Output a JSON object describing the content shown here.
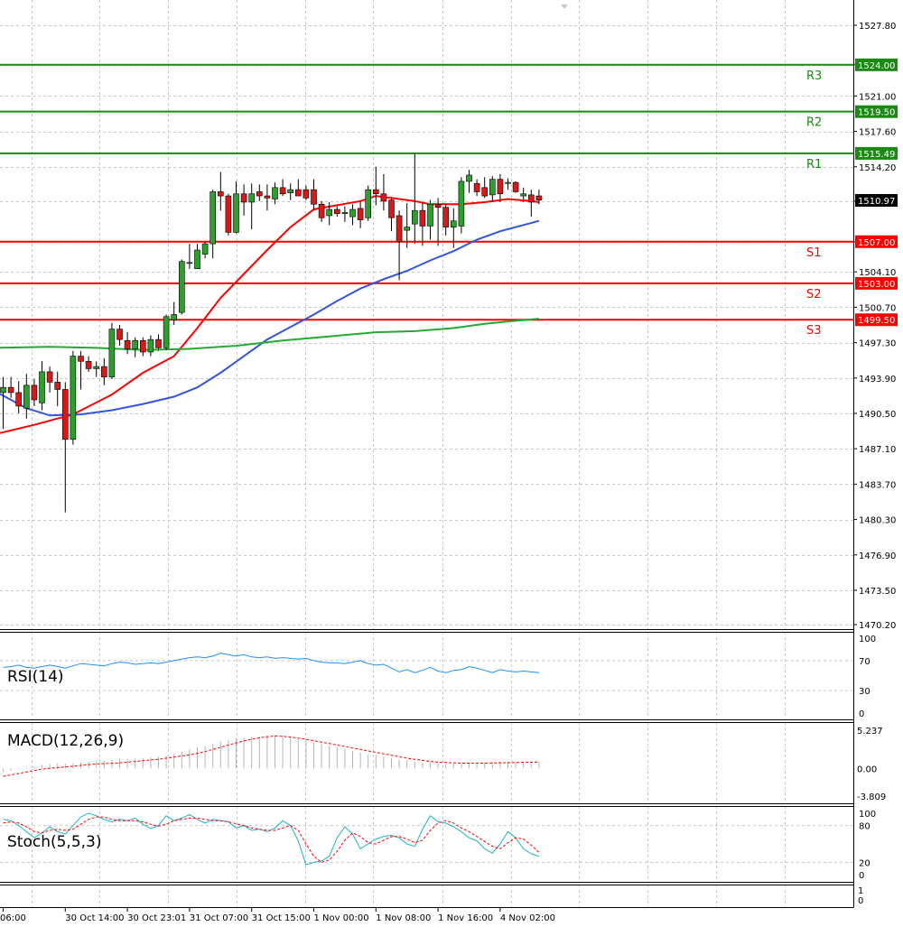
{
  "chart_data": {
    "type": "candlestick",
    "price_axis": {
      "ylim": [
        1470.2,
        1527.8
      ],
      "ticks": [
        "1527.80",
        "1524.00",
        "1521.00",
        "1517.60",
        "1514.20",
        "1510.90",
        "1507.00",
        "1504.10",
        "1500.70",
        "1497.30",
        "1493.90",
        "1490.50",
        "1487.10",
        "1483.70",
        "1480.30",
        "1476.90",
        "1473.50",
        "1470.20"
      ],
      "tick_values": [
        1527.8,
        1524.0,
        1521.0,
        1517.6,
        1514.2,
        1510.9,
        1507.0,
        1504.1,
        1500.7,
        1497.3,
        1493.9,
        1490.5,
        1487.1,
        1483.7,
        1480.3,
        1476.9,
        1473.5,
        1470.2
      ],
      "grid": true
    },
    "time_axis": {
      "labels": [
        "06:00",
        "30 Oct 14:00",
        "30 Oct 23:01",
        "31 Oct 07:00",
        "31 Oct 15:00",
        "1 Nov 00:00",
        "1 Nov 08:00",
        "1 Nov 16:00",
        "4 Nov 02:00"
      ],
      "label_bar_index": [
        0,
        8,
        16,
        24,
        32,
        40,
        48,
        56,
        64
      ]
    },
    "current_price": {
      "value": 1510.97,
      "label": "1510.97"
    },
    "levels": [
      {
        "name": "R3",
        "value": 1524.0,
        "label": "1524.00",
        "color": "#1a8a12"
      },
      {
        "name": "R2",
        "value": 1519.5,
        "label": "1519.50",
        "color": "#1a8a12"
      },
      {
        "name": "R1",
        "value": 1515.49,
        "label": "1515.49",
        "color": "#1a8a12"
      },
      {
        "name": "S1",
        "value": 1507.0,
        "label": "1507.00",
        "color": "#ff0000"
      },
      {
        "name": "S2",
        "value": 1503.0,
        "label": "1503.00",
        "color": "#ff0000"
      },
      {
        "name": "S3",
        "value": 1499.5,
        "label": "1499.50",
        "color": "#ff0000"
      }
    ],
    "candles": [
      {
        "o": 1492.5,
        "h": 1494.0,
        "l": 1489.0,
        "c": 1493.0
      },
      {
        "o": 1493.0,
        "h": 1494.0,
        "l": 1492.0,
        "c": 1492.5
      },
      {
        "o": 1492.5,
        "h": 1493.6,
        "l": 1490.5,
        "c": 1491.2
      },
      {
        "o": 1491.0,
        "h": 1494.3,
        "l": 1490.0,
        "c": 1493.2
      },
      {
        "o": 1493.2,
        "h": 1493.8,
        "l": 1491.2,
        "c": 1491.8
      },
      {
        "o": 1491.5,
        "h": 1495.5,
        "l": 1490.8,
        "c": 1494.5
      },
      {
        "o": 1494.5,
        "h": 1495.0,
        "l": 1492.5,
        "c": 1493.5
      },
      {
        "o": 1493.5,
        "h": 1494.5,
        "l": 1491.2,
        "c": 1492.8
      },
      {
        "o": 1492.8,
        "h": 1493.5,
        "l": 1481.0,
        "c": 1488.0
      },
      {
        "o": 1488.0,
        "h": 1496.5,
        "l": 1487.5,
        "c": 1496.0
      },
      {
        "o": 1496.0,
        "h": 1496.5,
        "l": 1492.8,
        "c": 1495.5
      },
      {
        "o": 1495.5,
        "h": 1496.0,
        "l": 1494.5,
        "c": 1494.8
      },
      {
        "o": 1494.8,
        "h": 1495.5,
        "l": 1494.0,
        "c": 1495.0
      },
      {
        "o": 1495.0,
        "h": 1495.8,
        "l": 1493.2,
        "c": 1494.0
      },
      {
        "o": 1494.0,
        "h": 1499.2,
        "l": 1493.8,
        "c": 1498.6
      },
      {
        "o": 1498.6,
        "h": 1499.0,
        "l": 1497.0,
        "c": 1497.6
      },
      {
        "o": 1497.5,
        "h": 1498.3,
        "l": 1496.2,
        "c": 1496.7
      },
      {
        "o": 1496.7,
        "h": 1497.8,
        "l": 1495.9,
        "c": 1497.5
      },
      {
        "o": 1497.5,
        "h": 1497.8,
        "l": 1496.0,
        "c": 1496.4
      },
      {
        "o": 1496.4,
        "h": 1498.0,
        "l": 1496.0,
        "c": 1497.6
      },
      {
        "o": 1497.6,
        "h": 1498.1,
        "l": 1496.5,
        "c": 1496.8
      },
      {
        "o": 1496.8,
        "h": 1500.0,
        "l": 1496.6,
        "c": 1499.8
      },
      {
        "o": 1499.5,
        "h": 1501.2,
        "l": 1499.0,
        "c": 1500.0
      },
      {
        "o": 1500.2,
        "h": 1505.3,
        "l": 1500.0,
        "c": 1505.1
      },
      {
        "o": 1505.0,
        "h": 1506.8,
        "l": 1504.4,
        "c": 1505.0
      },
      {
        "o": 1504.4,
        "h": 1506.8,
        "l": 1504.4,
        "c": 1506.2
      },
      {
        "o": 1505.8,
        "h": 1507.0,
        "l": 1505.4,
        "c": 1506.8
      },
      {
        "o": 1506.8,
        "h": 1512.0,
        "l": 1505.4,
        "c": 1511.8
      },
      {
        "o": 1511.8,
        "h": 1513.7,
        "l": 1510.0,
        "c": 1511.4
      },
      {
        "o": 1511.4,
        "h": 1511.6,
        "l": 1507.6,
        "c": 1507.9
      },
      {
        "o": 1507.9,
        "h": 1512.8,
        "l": 1507.8,
        "c": 1511.6
      },
      {
        "o": 1511.6,
        "h": 1512.5,
        "l": 1509.5,
        "c": 1510.8
      },
      {
        "o": 1510.8,
        "h": 1512.6,
        "l": 1508.2,
        "c": 1511.6
      },
      {
        "o": 1511.8,
        "h": 1512.5,
        "l": 1510.9,
        "c": 1511.4
      },
      {
        "o": 1511.4,
        "h": 1512.5,
        "l": 1510.0,
        "c": 1511.2
      },
      {
        "o": 1511.1,
        "h": 1512.7,
        "l": 1510.6,
        "c": 1512.2
      },
      {
        "o": 1512.2,
        "h": 1513.0,
        "l": 1511.4,
        "c": 1511.6
      },
      {
        "o": 1511.7,
        "h": 1512.6,
        "l": 1511.0,
        "c": 1512.0
      },
      {
        "o": 1512.0,
        "h": 1513.0,
        "l": 1511.4,
        "c": 1511.4
      },
      {
        "o": 1512.0,
        "h": 1512.4,
        "l": 1511.0,
        "c": 1511.2
      },
      {
        "o": 1512.0,
        "h": 1513.0,
        "l": 1510.0,
        "c": 1510.6
      },
      {
        "o": 1510.6,
        "h": 1510.9,
        "l": 1508.9,
        "c": 1509.3
      },
      {
        "o": 1509.5,
        "h": 1510.8,
        "l": 1508.6,
        "c": 1510.1
      },
      {
        "o": 1510.1,
        "h": 1510.4,
        "l": 1509.4,
        "c": 1509.7
      },
      {
        "o": 1509.7,
        "h": 1510.4,
        "l": 1508.9,
        "c": 1509.8
      },
      {
        "o": 1509.4,
        "h": 1510.6,
        "l": 1508.6,
        "c": 1510.1
      },
      {
        "o": 1510.2,
        "h": 1510.9,
        "l": 1508.3,
        "c": 1509.1
      },
      {
        "o": 1509.3,
        "h": 1512.4,
        "l": 1509.0,
        "c": 1512.0
      },
      {
        "o": 1512.0,
        "h": 1514.2,
        "l": 1510.5,
        "c": 1511.6
      },
      {
        "o": 1511.6,
        "h": 1513.5,
        "l": 1510.0,
        "c": 1510.9
      },
      {
        "o": 1511.0,
        "h": 1511.3,
        "l": 1508.0,
        "c": 1509.3
      },
      {
        "o": 1509.5,
        "h": 1510.0,
        "l": 1503.3,
        "c": 1507.0
      },
      {
        "o": 1508.1,
        "h": 1510.7,
        "l": 1506.4,
        "c": 1508.4
      },
      {
        "o": 1508.7,
        "h": 1515.5,
        "l": 1506.8,
        "c": 1510.0
      },
      {
        "o": 1510.0,
        "h": 1510.8,
        "l": 1506.6,
        "c": 1508.5
      },
      {
        "o": 1508.5,
        "h": 1511.0,
        "l": 1507.2,
        "c": 1510.6
      },
      {
        "o": 1510.6,
        "h": 1511.2,
        "l": 1506.6,
        "c": 1510.3
      },
      {
        "o": 1510.3,
        "h": 1510.6,
        "l": 1507.6,
        "c": 1508.4
      },
      {
        "o": 1508.4,
        "h": 1510.2,
        "l": 1506.4,
        "c": 1509.0
      },
      {
        "o": 1508.5,
        "h": 1513.2,
        "l": 1507.8,
        "c": 1512.8
      },
      {
        "o": 1512.8,
        "h": 1513.9,
        "l": 1511.7,
        "c": 1513.4
      },
      {
        "o": 1512.6,
        "h": 1513.0,
        "l": 1511.4,
        "c": 1511.8
      },
      {
        "o": 1512.2,
        "h": 1513.2,
        "l": 1511.2,
        "c": 1511.4
      },
      {
        "o": 1511.5,
        "h": 1513.3,
        "l": 1510.8,
        "c": 1513.0
      },
      {
        "o": 1513.0,
        "h": 1513.5,
        "l": 1510.8,
        "c": 1511.6
      },
      {
        "o": 1512.6,
        "h": 1513.1,
        "l": 1512.0,
        "c": 1512.7
      },
      {
        "o": 1512.7,
        "h": 1512.8,
        "l": 1511.7,
        "c": 1511.8
      },
      {
        "o": 1511.4,
        "h": 1512.2,
        "l": 1510.8,
        "c": 1511.6
      },
      {
        "o": 1511.5,
        "h": 1512.0,
        "l": 1509.4,
        "c": 1510.8
      },
      {
        "o": 1511.4,
        "h": 1512.0,
        "l": 1510.6,
        "c": 1511.0
      }
    ],
    "moving_averages": [
      {
        "color": "#ff0000",
        "points": [
          [
            -1,
            1488.5
          ],
          [
            4,
            1489.4
          ],
          [
            9,
            1490.4
          ],
          [
            14,
            1492.3
          ],
          [
            18,
            1494.4
          ],
          [
            22,
            1496.0
          ],
          [
            25,
            1498.7
          ],
          [
            28,
            1501.6
          ],
          [
            31,
            1503.9
          ],
          [
            34,
            1506.2
          ],
          [
            37,
            1508.4
          ],
          [
            40,
            1510.1
          ],
          [
            43,
            1510.5
          ],
          [
            46,
            1510.9
          ],
          [
            48,
            1511.4
          ],
          [
            50,
            1511.2
          ],
          [
            53,
            1510.9
          ],
          [
            55,
            1510.6
          ],
          [
            57,
            1510.6
          ],
          [
            59,
            1510.6
          ],
          [
            62,
            1510.8
          ],
          [
            65,
            1511.1
          ],
          [
            68,
            1510.9
          ],
          [
            69,
            1510.8
          ]
        ]
      },
      {
        "color": "#3355dd",
        "points": [
          [
            -1,
            1492.6
          ],
          [
            3,
            1491.0
          ],
          [
            6,
            1490.3
          ],
          [
            10,
            1490.4
          ],
          [
            14,
            1490.8
          ],
          [
            18,
            1491.4
          ],
          [
            22,
            1492.1
          ],
          [
            25,
            1493.0
          ],
          [
            28,
            1494.4
          ],
          [
            31,
            1496.0
          ],
          [
            34,
            1497.6
          ],
          [
            37,
            1498.8
          ],
          [
            40,
            1500.0
          ],
          [
            43,
            1501.3
          ],
          [
            46,
            1502.5
          ],
          [
            49,
            1503.4
          ],
          [
            52,
            1504.2
          ],
          [
            55,
            1505.2
          ],
          [
            58,
            1506.1
          ],
          [
            61,
            1507.2
          ],
          [
            64,
            1508.0
          ],
          [
            67,
            1508.6
          ],
          [
            69,
            1509.0
          ]
        ]
      },
      {
        "color": "#22aa33",
        "points": [
          [
            -1,
            1496.8
          ],
          [
            6,
            1496.9
          ],
          [
            12,
            1496.8
          ],
          [
            18,
            1496.6
          ],
          [
            24,
            1496.7
          ],
          [
            30,
            1497.0
          ],
          [
            36,
            1497.5
          ],
          [
            42,
            1497.9
          ],
          [
            48,
            1498.3
          ],
          [
            53,
            1498.4
          ],
          [
            58,
            1498.7
          ],
          [
            62,
            1499.1
          ],
          [
            66,
            1499.4
          ],
          [
            69,
            1499.6
          ]
        ]
      }
    ],
    "rsi": {
      "label": "RSI(14)",
      "ticks": [
        "100",
        "70",
        "30",
        "0"
      ],
      "tick_values": [
        100,
        70,
        30,
        0
      ],
      "ylim": [
        0,
        100
      ],
      "values": [
        61,
        62,
        64,
        61,
        60,
        62,
        64,
        62,
        60,
        63,
        66,
        65,
        64,
        63,
        66,
        68,
        67,
        65,
        66,
        67,
        66,
        68,
        70,
        72,
        74,
        75,
        74,
        76,
        80,
        78,
        76,
        78,
        75,
        74,
        75,
        73,
        74,
        73,
        72,
        73,
        70,
        68,
        67,
        67,
        66,
        68,
        70,
        66,
        64,
        65,
        60,
        55,
        58,
        54,
        57,
        61,
        56,
        54,
        57,
        58,
        62,
        60,
        57,
        54,
        58,
        56,
        55,
        56,
        55,
        54
      ]
    },
    "macd": {
      "label": "MACD(12,26,9)",
      "ticks": [
        "5.237",
        "0.00",
        "-3.809"
      ],
      "tick_values": [
        5.237,
        0,
        -3.809
      ],
      "ylim": [
        -3.809,
        5.237
      ],
      "histogram": [
        -0.5,
        -0.3,
        -0.1,
        0.1,
        0.3,
        0.5,
        0.6,
        0.7,
        0.6,
        0.7,
        0.8,
        0.9,
        1.0,
        1.05,
        1.2,
        1.25,
        1.3,
        1.35,
        1.4,
        1.5,
        1.6,
        1.8,
        2.0,
        2.3,
        2.6,
        2.9,
        3.1,
        3.4,
        3.7,
        3.9,
        4.1,
        4.2,
        4.3,
        4.4,
        4.5,
        4.55,
        4.5,
        4.3,
        4.0,
        3.8,
        3.6,
        3.4,
        3.1,
        2.9,
        2.7,
        2.4,
        2.2,
        1.9,
        1.8,
        1.6,
        1.4,
        1.2,
        1.1,
        0.9,
        0.8,
        0.8,
        0.7,
        0.6,
        0.6,
        0.6,
        0.7,
        0.8,
        0.8,
        0.9,
        0.9,
        0.9,
        0.9,
        0.9,
        0.9,
        0.9
      ],
      "signal": [
        -1.1,
        -0.9,
        -0.7,
        -0.5,
        -0.3,
        -0.1,
        0.0,
        0.1,
        0.2,
        0.3,
        0.4,
        0.5,
        0.6,
        0.65,
        0.7,
        0.75,
        0.85,
        0.95,
        1.05,
        1.15,
        1.25,
        1.4,
        1.55,
        1.7,
        1.85,
        2.05,
        2.3,
        2.6,
        2.9,
        3.2,
        3.5,
        3.75,
        4.0,
        4.2,
        4.35,
        4.45,
        4.4,
        4.3,
        4.15,
        4.0,
        3.8,
        3.6,
        3.4,
        3.2,
        3.0,
        2.8,
        2.6,
        2.4,
        2.2,
        2.0,
        1.8,
        1.6,
        1.4,
        1.25,
        1.1,
        0.95,
        0.85,
        0.8,
        0.75,
        0.72,
        0.72,
        0.72,
        0.72,
        0.74,
        0.76,
        0.78,
        0.8,
        0.82,
        0.84,
        0.86
      ]
    },
    "stoch": {
      "label": "Stoch(5,5,3)",
      "ticks": [
        "100",
        "80",
        "20",
        "0"
      ],
      "tick_values": [
        100,
        80,
        20,
        0
      ],
      "ylim": [
        0,
        100
      ],
      "main": [
        90,
        88,
        80,
        70,
        60,
        68,
        78,
        70,
        66,
        80,
        94,
        100,
        96,
        90,
        86,
        90,
        88,
        92,
        82,
        75,
        80,
        96,
        88,
        92,
        98,
        90,
        84,
        90,
        88,
        86,
        76,
        80,
        72,
        74,
        70,
        76,
        88,
        80,
        55,
        16,
        20,
        22,
        30,
        60,
        78,
        66,
        42,
        50,
        58,
        62,
        64,
        60,
        50,
        46,
        74,
        96,
        86,
        84,
        78,
        70,
        60,
        55,
        42,
        35,
        50,
        70,
        60,
        42,
        34,
        30
      ],
      "signal": [
        84,
        86,
        84,
        78,
        70,
        68,
        72,
        74,
        72,
        74,
        82,
        90,
        94,
        94,
        90,
        88,
        88,
        88,
        86,
        82,
        79,
        82,
        88,
        90,
        92,
        92,
        90,
        88,
        88,
        86,
        83,
        80,
        76,
        74,
        72,
        72,
        76,
        80,
        72,
        50,
        30,
        20,
        24,
        38,
        56,
        68,
        62,
        52,
        50,
        56,
        62,
        62,
        58,
        52,
        56,
        72,
        84,
        88,
        84,
        76,
        70,
        62,
        54,
        46,
        42,
        52,
        60,
        58,
        48,
        36
      ]
    }
  }
}
